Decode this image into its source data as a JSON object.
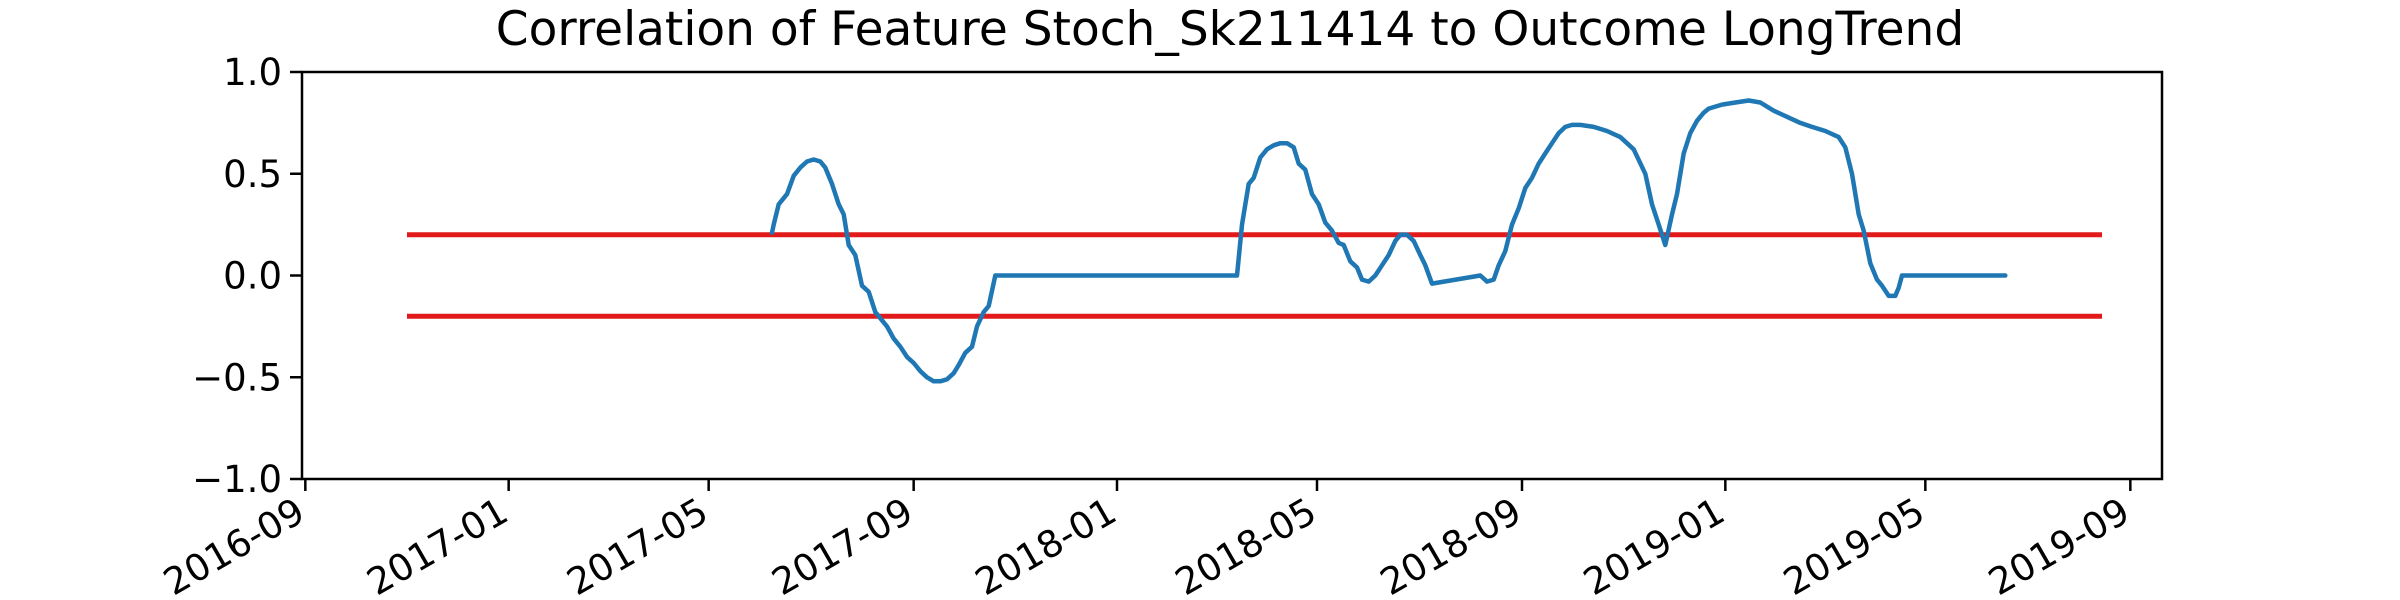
{
  "chart_data": {
    "type": "line",
    "title": "Correlation of Feature Stoch_Sk211414 to Outcome LongTrend",
    "xlabel": "",
    "ylabel": "",
    "ylim": [
      -1.0,
      1.0
    ],
    "xlim": [
      "2016-08-30",
      "2019-09-20"
    ],
    "grid": false,
    "x_ticks": [
      "2016-09",
      "2017-01",
      "2017-05",
      "2017-09",
      "2018-01",
      "2018-05",
      "2018-09",
      "2019-01",
      "2019-05",
      "2019-09"
    ],
    "y_ticks": [
      "1.0",
      "0.5",
      "0.0",
      "−0.5",
      "−1.0"
    ],
    "colors": {
      "series": "#1f77b4",
      "threshold": "#e31a1c",
      "axes": "#000000"
    },
    "thresholds": [
      {
        "value": 0.2,
        "x": [
          "2016-11-01",
          "2019-08-15"
        ]
      },
      {
        "value": -0.2,
        "x": [
          "2016-11-01",
          "2019-08-15"
        ]
      }
    ],
    "series": [
      {
        "x": [
          "2017-06-08",
          "2017-06-09",
          "2017-06-12",
          "2017-06-17",
          "2017-06-21",
          "2017-06-25",
          "2017-06-29",
          "2017-07-03",
          "2017-07-07",
          "2017-07-10",
          "2017-07-14",
          "2017-07-18",
          "2017-07-21",
          "2017-07-24",
          "2017-07-28",
          "2017-08-01",
          "2017-08-05",
          "2017-08-09",
          "2017-08-13",
          "2017-08-16",
          "2017-08-20",
          "2017-08-24",
          "2017-08-28",
          "2017-09-01",
          "2017-09-05",
          "2017-09-09",
          "2017-09-13",
          "2017-09-17",
          "2017-09-21",
          "2017-09-25",
          "2017-09-28",
          "2017-10-02",
          "2017-10-06",
          "2017-10-09",
          "2017-10-13",
          "2017-10-16",
          "2017-10-20",
          "2017-10-21",
          "2018-03-14",
          "2018-03-17",
          "2018-03-21",
          "2018-03-24",
          "2018-03-28",
          "2018-04-01",
          "2018-04-05",
          "2018-04-09",
          "2018-04-13",
          "2018-04-17",
          "2018-04-20",
          "2018-04-24",
          "2018-04-28",
          "2018-05-02",
          "2018-05-06",
          "2018-05-10",
          "2018-05-14",
          "2018-05-17",
          "2018-05-21",
          "2018-05-25",
          "2018-05-28",
          "2018-06-01",
          "2018-06-05",
          "2018-06-09",
          "2018-06-13",
          "2018-06-17",
          "2018-06-20",
          "2018-06-24",
          "2018-06-28",
          "2018-07-02",
          "2018-07-05",
          "2018-07-09",
          "2018-08-07",
          "2018-08-11",
          "2018-08-15",
          "2018-08-18",
          "2018-08-22",
          "2018-08-26",
          "2018-08-30",
          "2018-09-03",
          "2018-09-07",
          "2018-09-11",
          "2018-09-15",
          "2018-09-19",
          "2018-09-23",
          "2018-09-27",
          "2018-10-01",
          "2018-10-06",
          "2018-10-14",
          "2018-10-22",
          "2018-10-30",
          "2018-11-07",
          "2018-11-14",
          "2018-11-18",
          "2018-11-22",
          "2018-11-26",
          "2018-11-30",
          "2018-12-03",
          "2018-12-07",
          "2018-12-11",
          "2018-12-15",
          "2018-12-19",
          "2018-12-22",
          "2018-12-26",
          "2018-12-30",
          "2019-01-07",
          "2019-01-15",
          "2019-01-22",
          "2019-01-30",
          "2019-02-07",
          "2019-02-15",
          "2019-02-22",
          "2019-03-02",
          "2019-03-10",
          "2019-03-14",
          "2019-03-18",
          "2019-03-22",
          "2019-03-25",
          "2019-03-29",
          "2019-04-02",
          "2019-04-05",
          "2019-04-09",
          "2019-04-13",
          "2019-04-15",
          "2019-04-17",
          "2019-04-20",
          "2019-05-20",
          "2019-06-18"
        ],
        "values": [
          0.21,
          0.25,
          0.35,
          0.4,
          0.49,
          0.53,
          0.56,
          0.57,
          0.56,
          0.53,
          0.45,
          0.35,
          0.3,
          0.15,
          0.1,
          -0.05,
          -0.08,
          -0.18,
          -0.22,
          -0.25,
          -0.31,
          -0.35,
          -0.4,
          -0.43,
          -0.47,
          -0.5,
          -0.52,
          -0.52,
          -0.51,
          -0.48,
          -0.44,
          -0.38,
          -0.35,
          -0.25,
          -0.18,
          -0.15,
          0.0,
          0.0,
          0.0,
          0.25,
          0.45,
          0.48,
          0.58,
          0.62,
          0.64,
          0.65,
          0.65,
          0.63,
          0.55,
          0.52,
          0.4,
          0.35,
          0.26,
          0.22,
          0.16,
          0.15,
          0.07,
          0.04,
          -0.02,
          -0.03,
          0.0,
          0.05,
          0.1,
          0.17,
          0.2,
          0.2,
          0.17,
          0.1,
          0.05,
          -0.04,
          0.0,
          -0.03,
          -0.02,
          0.05,
          0.12,
          0.25,
          0.33,
          0.43,
          0.48,
          0.55,
          0.6,
          0.65,
          0.7,
          0.73,
          0.74,
          0.74,
          0.73,
          0.71,
          0.68,
          0.62,
          0.5,
          0.35,
          0.25,
          0.15,
          0.3,
          0.4,
          0.6,
          0.7,
          0.76,
          0.8,
          0.82,
          0.83,
          0.84,
          0.85,
          0.86,
          0.85,
          0.81,
          0.78,
          0.75,
          0.73,
          0.71,
          0.68,
          0.63,
          0.5,
          0.3,
          0.22,
          0.06,
          -0.02,
          -0.05,
          -0.1,
          -0.1,
          -0.06,
          0.0,
          0.0,
          0.0,
          0.0
        ]
      }
    ]
  }
}
